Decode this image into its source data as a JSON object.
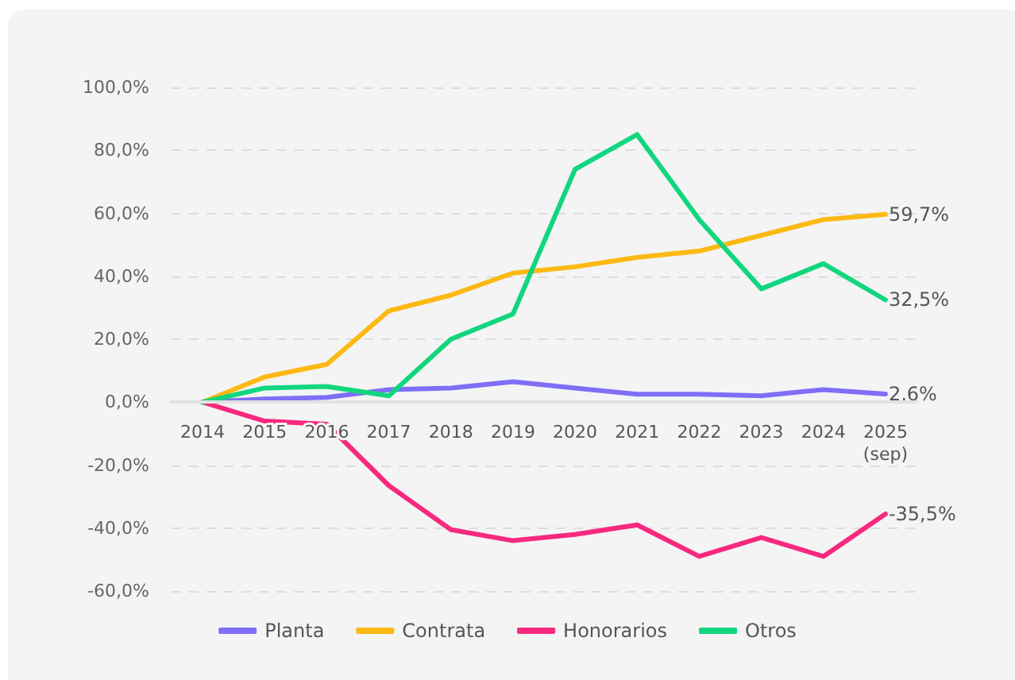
{
  "chart_data": {
    "type": "line",
    "categories": [
      "2014",
      "2015",
      "2016",
      "2017",
      "2018",
      "2019",
      "2020",
      "2021",
      "2022",
      "2023",
      "2024",
      "2025\n(sep)"
    ],
    "series": [
      {
        "name": "Planta",
        "color": "#7f6ff7",
        "values": [
          0,
          1,
          1.5,
          4,
          4.5,
          6.5,
          4.5,
          2.5,
          2.5,
          2,
          4,
          2.6
        ],
        "value_labels": [
          null,
          null,
          null,
          null,
          null,
          null,
          null,
          null,
          null,
          null,
          null,
          "2,6%"
        ]
      },
      {
        "name": "Contrata",
        "color": "#fdb913",
        "values": [
          0,
          8,
          12,
          29,
          34,
          41,
          43,
          46,
          48,
          53,
          58,
          59.7
        ],
        "value_labels": [
          null,
          null,
          null,
          null,
          null,
          null,
          null,
          null,
          null,
          null,
          null,
          "59,7%"
        ]
      },
      {
        "name": "Honorarios",
        "color": "#f7297f",
        "values": [
          0,
          -6,
          -7,
          -26.5,
          -40.5,
          -44,
          -42,
          -39,
          -49,
          -43,
          -49,
          -35.5
        ],
        "value_labels": [
          null,
          null,
          null,
          null,
          null,
          null,
          null,
          null,
          null,
          null,
          null,
          "-35,5%"
        ]
      },
      {
        "name": "Otros",
        "color": "#12d67e",
        "values": [
          0,
          4.5,
          5,
          2,
          20,
          28,
          74,
          85,
          58,
          36,
          44,
          32.5
        ],
        "value_labels": [
          null,
          null,
          null,
          null,
          null,
          null,
          null,
          null,
          null,
          null,
          null,
          "32,5%"
        ]
      }
    ],
    "ylim": [
      -60,
      100
    ],
    "yticks": [
      {
        "value": -60,
        "label": "-60,0%"
      },
      {
        "value": -40,
        "label": "-40,0%"
      },
      {
        "value": -20,
        "label": "-20,0%"
      },
      {
        "value": 0,
        "label": "0,0%"
      },
      {
        "value": 20,
        "label": "20,0%"
      },
      {
        "value": 40,
        "label": "40,0%"
      },
      {
        "value": 60,
        "label": "60,0%"
      },
      {
        "value": 80,
        "label": "80,0%"
      },
      {
        "value": 100,
        "label": "100,0%"
      }
    ],
    "grid": "y",
    "legend": "bottom",
    "marker": "none",
    "line_style": "solid"
  }
}
